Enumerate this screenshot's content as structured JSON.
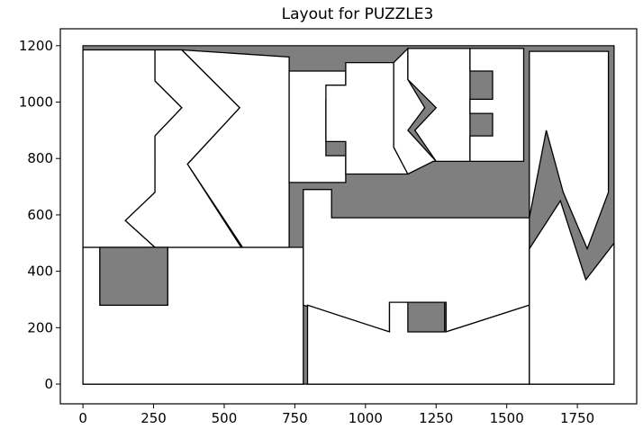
{
  "chart_data": {
    "type": "diagram",
    "title": "Layout for PUZZLE3",
    "xlim": [
      -80,
      1960
    ],
    "ylim": [
      -70,
      1260
    ],
    "xticks": [
      0,
      250,
      500,
      750,
      1000,
      1250,
      1500,
      1750
    ],
    "yticks": [
      0,
      200,
      400,
      600,
      800,
      1000,
      1200
    ],
    "grid": false,
    "colors": {
      "container": "#7f7f7f",
      "piece": "#ffffff",
      "edge": "#000000"
    },
    "container": [
      [
        0,
        0
      ],
      [
        1880,
        0
      ],
      [
        1880,
        1200
      ],
      [
        0,
        1200
      ]
    ],
    "pieces": [
      {
        "id": "bottom-left-region",
        "points": [
          [
            0,
            0
          ],
          [
            780,
            0
          ],
          [
            780,
            485
          ],
          [
            0,
            485
          ]
        ],
        "holes": [
          [
            [
              60,
              280
            ],
            [
              300,
              280
            ],
            [
              300,
              485
            ],
            [
              60,
              485
            ]
          ]
        ]
      },
      {
        "id": "top-left-piece",
        "points": [
          [
            0,
            480
          ],
          [
            730,
            480
          ],
          [
            730,
            1160
          ],
          [
            350,
            1185
          ],
          [
            0,
            1185
          ]
        ]
      },
      {
        "id": "center-bottom-box",
        "points": [
          [
            780,
            0
          ],
          [
            1580,
            0
          ],
          [
            1580,
            590
          ],
          [
            1280,
            590
          ],
          [
            1280,
            870
          ],
          [
            1150,
            870
          ],
          [
            1150,
            780
          ],
          [
            930,
            780
          ],
          [
            930,
            720
          ],
          [
            880,
            720
          ],
          [
            880,
            590
          ],
          [
            780,
            590
          ]
        ]
      },
      {
        "id": "small-block-left",
        "points": [
          [
            730,
            710
          ],
          [
            930,
            710
          ],
          [
            930,
            1110
          ],
          [
            730,
            1110
          ]
        ]
      },
      {
        "id": "cross-piece",
        "points": [
          [
            930,
            740
          ],
          [
            1100,
            740
          ],
          [
            1100,
            1140
          ],
          [
            930,
            1140
          ]
        ]
      },
      {
        "id": "center-right-piece",
        "points": [
          [
            1150,
            790
          ],
          [
            1370,
            790
          ],
          [
            1370,
            1190
          ],
          [
            1150,
            1190
          ]
        ]
      },
      {
        "id": "comb-piece",
        "points": [
          [
            1350,
            790
          ],
          [
            1560,
            790
          ],
          [
            1560,
            1190
          ],
          [
            1350,
            1190
          ]
        ]
      },
      {
        "id": "top-right-piece",
        "points": [
          [
            1560,
            590
          ],
          [
            1880,
            590
          ],
          [
            1880,
            1180
          ],
          [
            1560,
            1180
          ]
        ]
      },
      {
        "id": "bottom-right-piece",
        "points": [
          [
            1580,
            0
          ],
          [
            1880,
            0
          ],
          [
            1880,
            500
          ],
          [
            1580,
            500
          ]
        ]
      }
    ]
  }
}
